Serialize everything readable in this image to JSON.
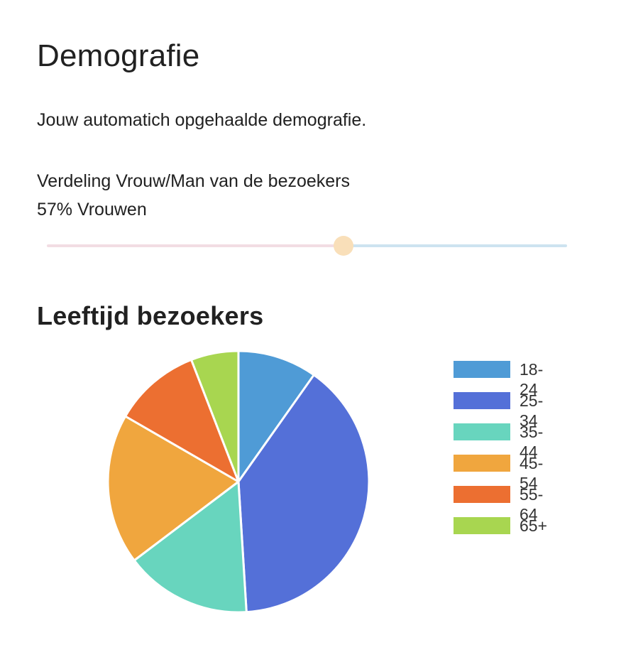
{
  "page": {
    "title": "Demografie",
    "intro": "Jouw automatich opgehaalde demografie."
  },
  "gender": {
    "label": "Verdeling Vrouw/Man van de bezoekers",
    "value_text": "57% Vrouwen",
    "female_fraction": 0.57,
    "colors": {
      "female_track": "#f2dde3",
      "male_track": "#cde3f0",
      "thumb": "#f9dfb9"
    }
  },
  "age": {
    "title": "Leeftijd bezoekers"
  },
  "chart_data": {
    "type": "pie",
    "title": "Leeftijd bezoekers",
    "categories": [
      "18-24",
      "25-34",
      "35-44",
      "45-54",
      "55-64",
      "65+"
    ],
    "values": [
      10,
      40,
      16,
      19,
      11,
      6
    ],
    "colors": [
      "#4f9bd6",
      "#5470d8",
      "#68d5be",
      "#f0a63e",
      "#ec6f31",
      "#a8d650"
    ],
    "legend": "right",
    "start_angle_deg": 0,
    "direction": "clockwise"
  }
}
